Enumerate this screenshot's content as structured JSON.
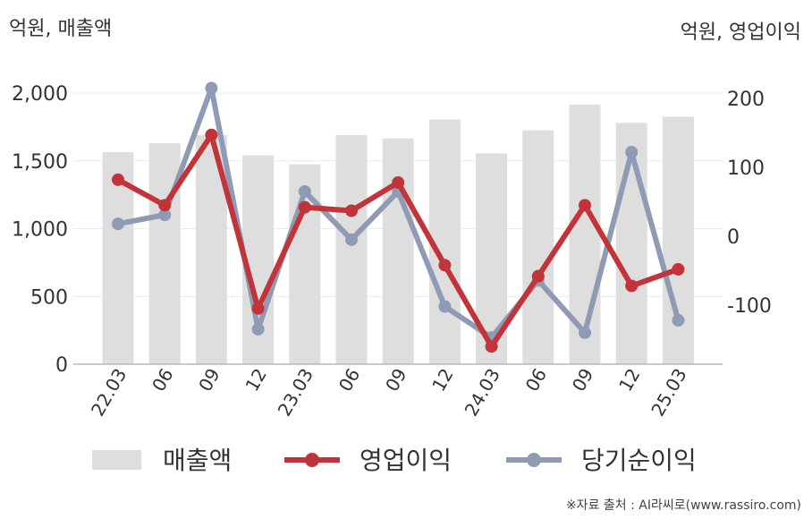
{
  "left_unit": "억원, 매출액",
  "right_unit": "억원, 영업이익",
  "credit": "※자료 출처 : AI라씨로(www.rassiro.com)",
  "chart_data": {
    "type": "bar",
    "categories": [
      "22.03",
      "06",
      "09",
      "12",
      "23.03",
      "06",
      "09",
      "12",
      "24.03",
      "06",
      "09",
      "12",
      "25.03"
    ],
    "series": [
      {
        "name": "매출액",
        "type": "bar",
        "axis": "left",
        "values": [
          1565,
          1630,
          1690,
          1540,
          1475,
          1690,
          1665,
          1805,
          1555,
          1725,
          1915,
          1780,
          1825
        ]
      },
      {
        "name": "영업이익",
        "type": "line",
        "axis": "right",
        "values": [
          82,
          45,
          147,
          -105,
          42,
          37,
          78,
          -42,
          -160,
          -58,
          45,
          -72,
          -48
        ]
      },
      {
        "name": "당기순이익",
        "type": "line",
        "axis": "right",
        "values": [
          18,
          31,
          215,
          -135,
          65,
          -5,
          65,
          -102,
          -147,
          -64,
          -140,
          122,
          -122
        ]
      }
    ],
    "left_axis": {
      "ylim": [
        0,
        2000
      ],
      "ticks": [
        "0",
        "500",
        "1,000",
        "1,500",
        "2,000"
      ]
    },
    "right_axis": {
      "ylim": [
        -180,
        220
      ],
      "ticks": [
        "-100",
        "0",
        "100",
        "200"
      ]
    },
    "colors": {
      "bar": "#dedede",
      "operating": "#c0343a",
      "net": "#8f9bb5"
    },
    "grid": true,
    "legend_position": "bottom"
  }
}
